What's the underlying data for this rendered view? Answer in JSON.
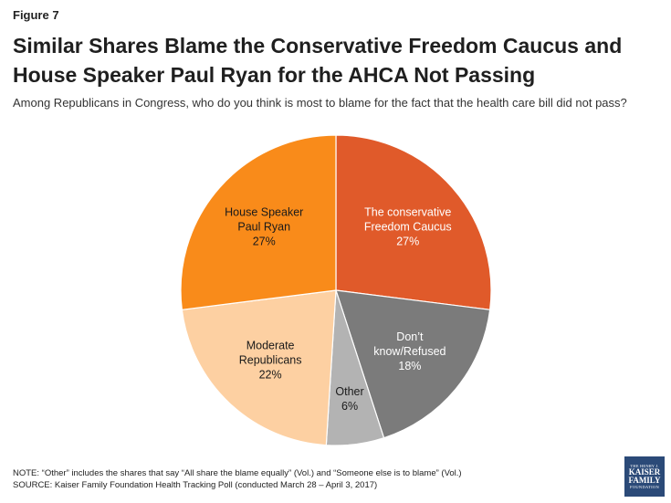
{
  "figure_label": "Figure 7",
  "title": "Similar Shares Blame the Conservative Freedom Caucus and House Speaker Paul Ryan for the AHCA Not Passing",
  "subtitle": "Among Republicans in Congress, who do you think is most to blame for the fact that the health care bill did not pass?",
  "note": "NOTE: “Other” includes the shares that say “All share the blame equally” (Vol.) and “Someone else is to blame” (Vol.)",
  "source": "SOURCE: Kaiser Family Foundation Health Tracking Poll (conducted March 28 – April 3, 2017)",
  "logo": {
    "top": "THE HENRY J.",
    "line1": "KAISER",
    "line2": "FAMILY",
    "bottom": "FOUNDATION"
  },
  "chart_data": {
    "type": "pie",
    "title": "",
    "start_angle_deg": 0,
    "direction": "clockwise",
    "slices": [
      {
        "label_lines": [
          "The conservative",
          "Freedom Caucus",
          "27%"
        ],
        "value": 27,
        "color": "#e05a2a",
        "text_color": "#ffffff"
      },
      {
        "label_lines": [
          "Don’t",
          "know/Refused",
          "18%"
        ],
        "value": 18,
        "color": "#7b7b7b",
        "text_color": "#ffffff"
      },
      {
        "label_lines": [
          "Other",
          "6%"
        ],
        "value": 6,
        "color": "#b3b3b3",
        "text_color": "#1a1a1a"
      },
      {
        "label_lines": [
          "Moderate",
          "Republicans",
          "22%"
        ],
        "value": 22,
        "color": "#fdd0a2",
        "text_color": "#1a1a1a"
      },
      {
        "label_lines": [
          "House Speaker",
          "Paul Ryan",
          "27%"
        ],
        "value": 27,
        "color": "#f98b1a",
        "text_color": "#1a1a1a"
      }
    ]
  }
}
